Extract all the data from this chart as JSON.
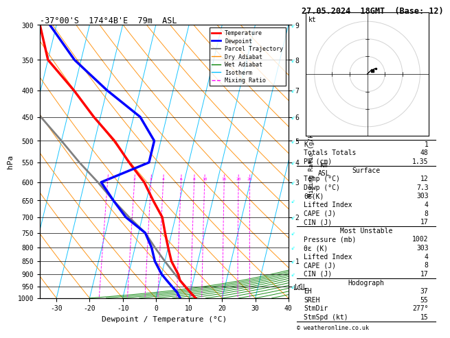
{
  "title_left": "-37°00'S  174°4B'E  79m  ASL",
  "title_right": "27.05.2024  18GMT  (Base: 12)",
  "xlabel": "Dewpoint / Temperature (°C)",
  "ylabel_left": "hPa",
  "pressure_levels": [
    300,
    350,
    400,
    450,
    500,
    550,
    600,
    650,
    700,
    750,
    800,
    850,
    900,
    950,
    1000
  ],
  "temp_profile": {
    "pressure": [
      1000,
      975,
      950,
      925,
      900,
      850,
      800,
      750,
      700,
      650,
      600,
      550,
      500,
      450,
      400,
      350,
      300
    ],
    "temp": [
      12,
      10,
      8,
      6,
      5,
      2,
      0,
      -2,
      -4,
      -8,
      -12,
      -18,
      -24,
      -32,
      -40,
      -50,
      -55
    ]
  },
  "dewpoint_profile": {
    "pressure": [
      1000,
      975,
      950,
      925,
      900,
      850,
      800,
      750,
      700,
      650,
      600,
      550,
      500,
      450,
      400,
      350,
      300
    ],
    "dewpoint": [
      7.3,
      6,
      4,
      2,
      0,
      -3,
      -5,
      -8,
      -15,
      -20,
      -25,
      -12,
      -12,
      -18,
      -30,
      -42,
      -52
    ]
  },
  "parcel_profile": {
    "pressure": [
      1000,
      950,
      900,
      850,
      800,
      750,
      700,
      650,
      600,
      550,
      500,
      450,
      400,
      350,
      300
    ],
    "temp": [
      12,
      8,
      4,
      0,
      -4,
      -8,
      -14,
      -20,
      -26,
      -33,
      -40,
      -48,
      -56,
      -60,
      -62
    ]
  },
  "lcl_pressure": 955,
  "stats": {
    "K": 1,
    "Totals_Totals": 48,
    "PW_cm": 1.35,
    "Surface_Temp_C": 12,
    "Surface_Dewp_C": 7.3,
    "Surface_ThetaE_K": 303,
    "Surface_LI": 4,
    "Surface_CAPE_J": 8,
    "Surface_CIN_J": 17,
    "MU_Pressure_mb": 1002,
    "MU_ThetaE_K": 303,
    "MU_LI": 4,
    "MU_CAPE_J": 8,
    "MU_CIN_J": 17,
    "Hodograph_EH": 37,
    "Hodograph_SREH": 55,
    "StmDir": 277,
    "StmSpd_kt": 15
  },
  "colors": {
    "temperature": "#ff0000",
    "dewpoint": "#0000ff",
    "parcel": "#808080",
    "dry_adiabat": "#ff8c00",
    "wet_adiabat": "#008000",
    "isotherm": "#00bfff",
    "mixing_ratio": "#ff00ff",
    "background": "#ffffff",
    "grid": "#000000"
  },
  "km_ticks": {
    "pressures": [
      300,
      350,
      400,
      450,
      500,
      550,
      600,
      700,
      850,
      950
    ],
    "km_values": [
      "9",
      "8",
      "7",
      "6",
      "5",
      "4",
      "3",
      "2",
      "1",
      "LCL"
    ]
  },
  "mixing_ratio_lines": [
    1,
    2,
    3,
    4,
    6,
    8,
    10,
    15,
    20,
    25
  ]
}
